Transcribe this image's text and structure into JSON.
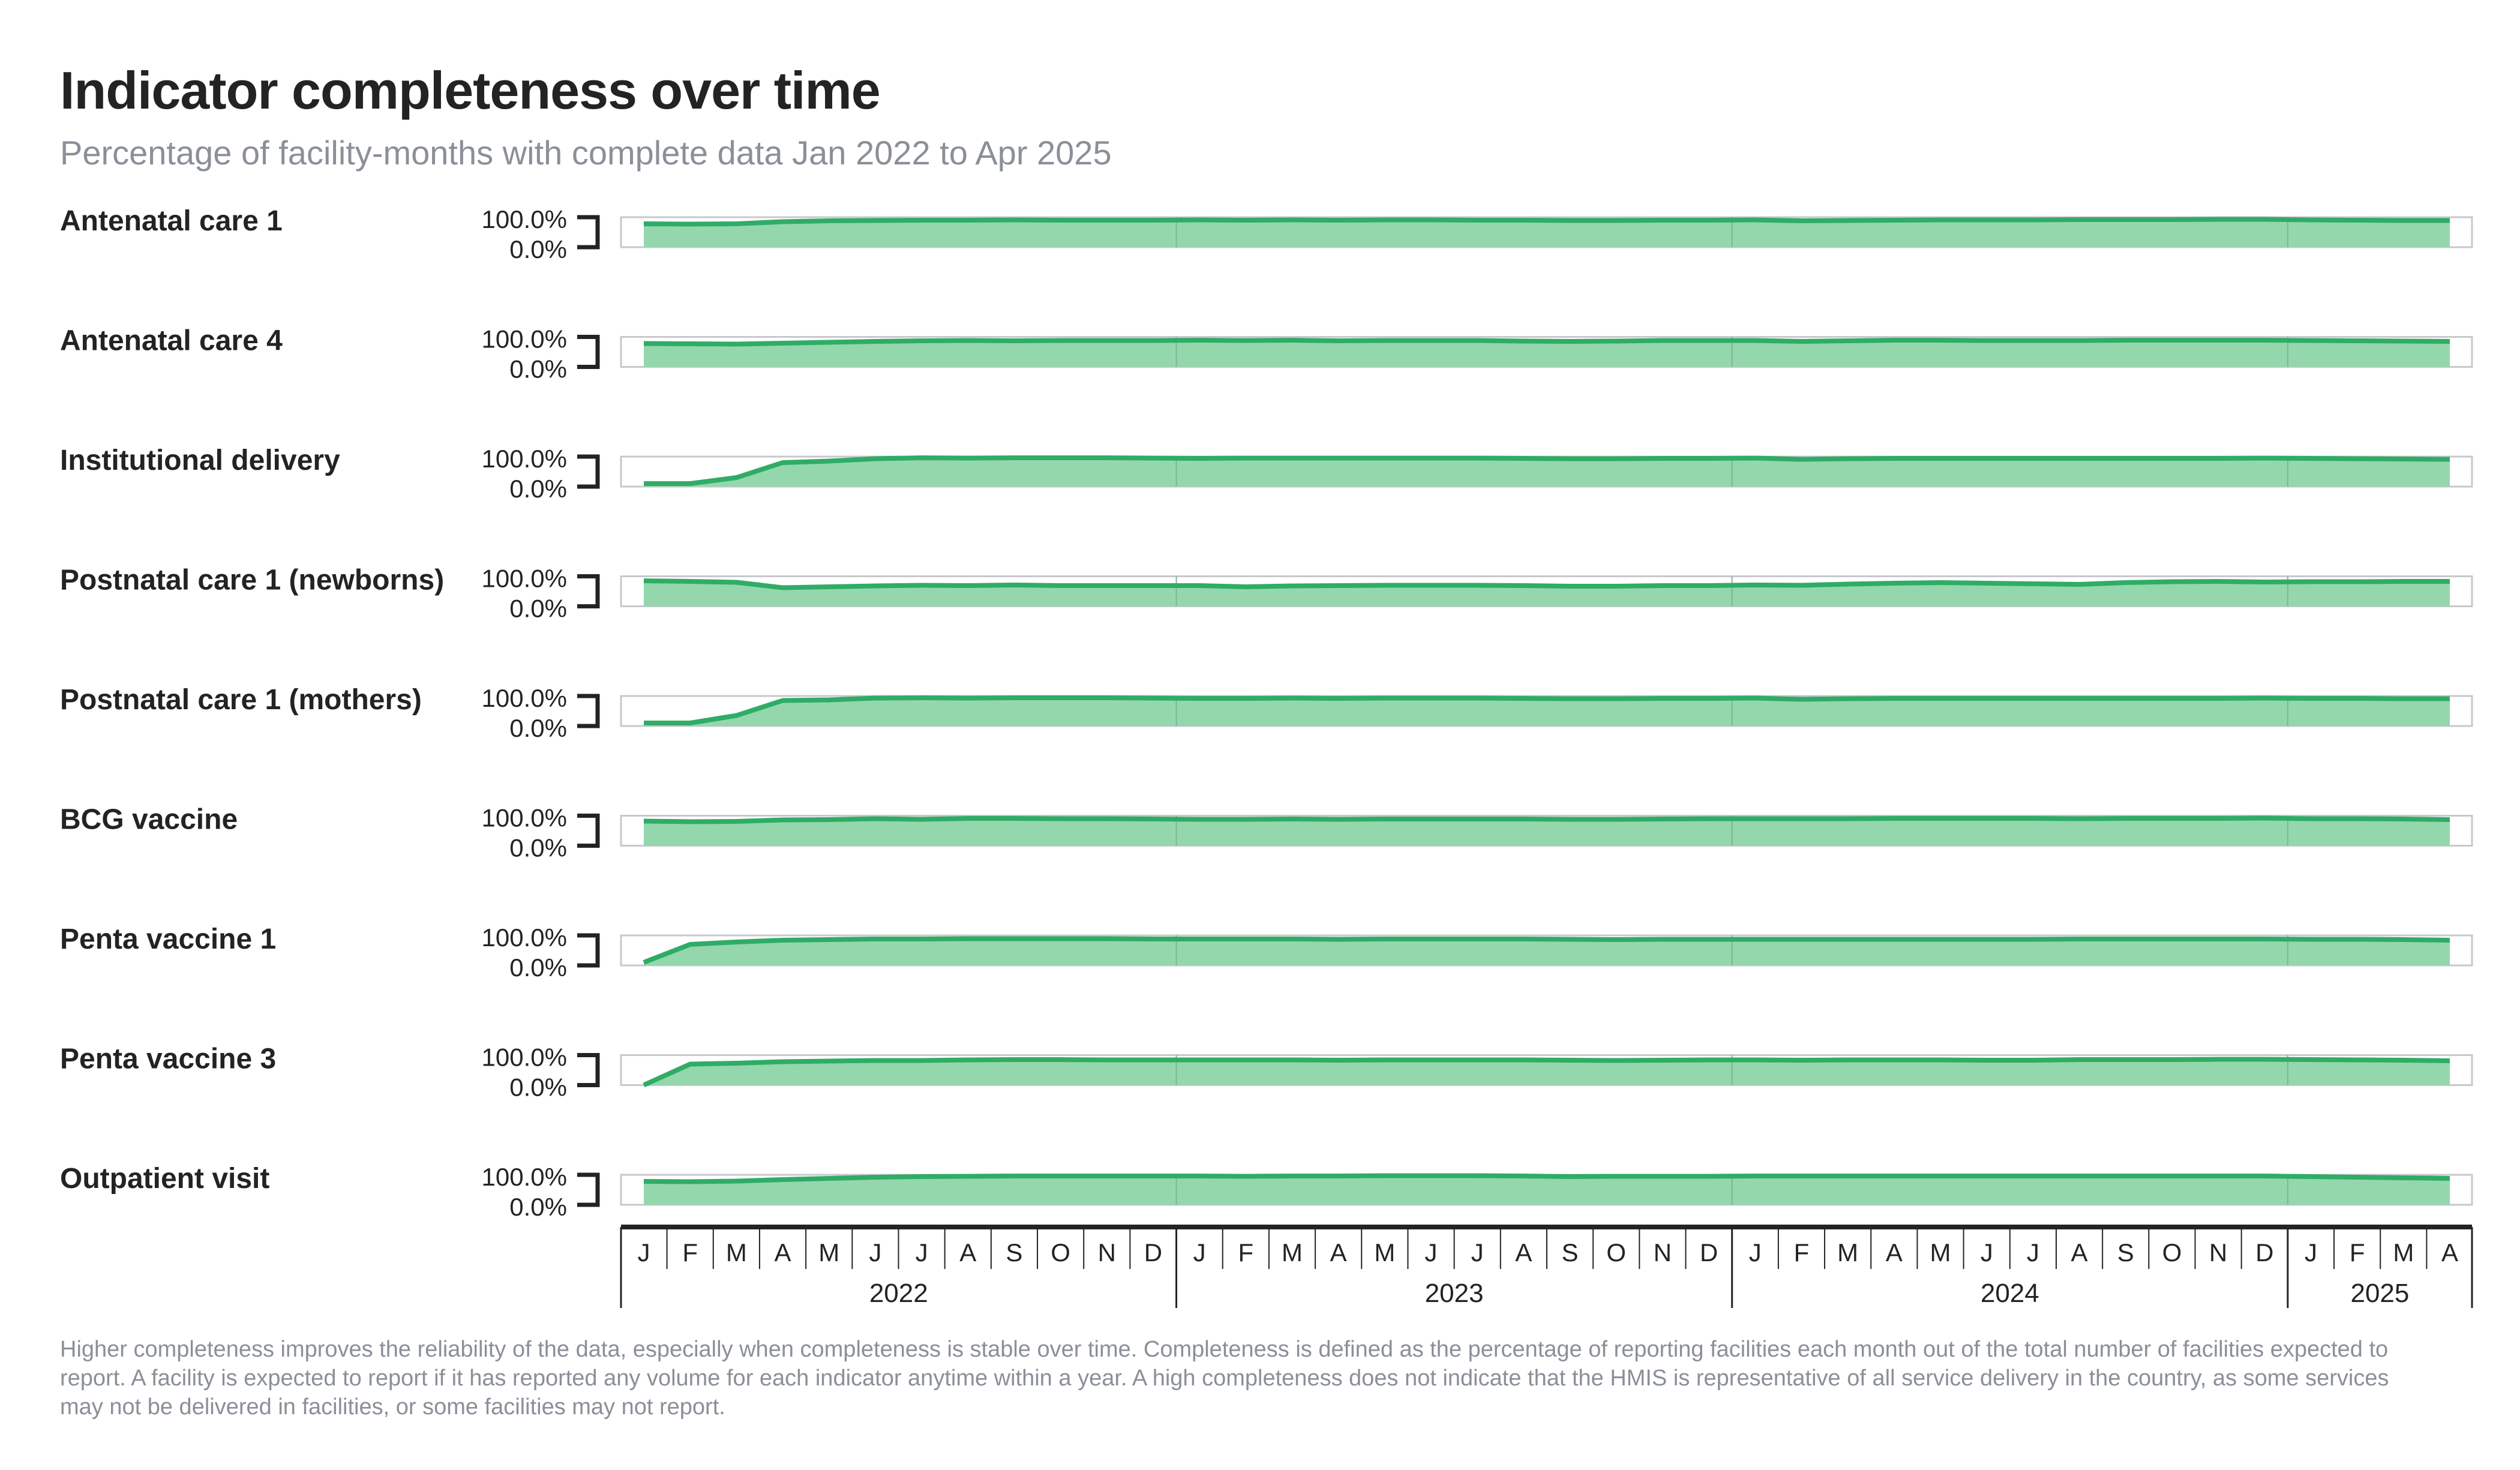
{
  "title": "Indicator completeness over time",
  "subtitle": "Percentage of facility-months with complete data Jan 2022 to Apr 2025",
  "footnote": "Higher completeness improves the reliability of the data, especially when completeness is stable over time. Completeness is defined as the percentage of reporting facilities each month out of the total number of facilities expected to report. A facility is expected to report if it has reported any volume for each indicator anytime within a year. A high completeness does not indicate that the HMIS is representative of all service delivery in the country, as some services may not be delivered in facilities, or some facilities may not report.",
  "colors": {
    "line": "#2fac66",
    "fill": "#94d7ad",
    "frame": "#c8c8cc",
    "axis": "#232323"
  },
  "chart_data": {
    "type": "area",
    "x_start": "2022-01",
    "x_end": "2025-04",
    "month_labels": [
      "J",
      "F",
      "M",
      "A",
      "M",
      "J",
      "J",
      "A",
      "S",
      "O",
      "N",
      "D",
      "J",
      "F",
      "M",
      "A",
      "M",
      "J",
      "J",
      "A",
      "S",
      "O",
      "N",
      "D",
      "J",
      "F",
      "M",
      "A",
      "M",
      "J",
      "J",
      "A",
      "S",
      "O",
      "N",
      "D",
      "J",
      "F",
      "M",
      "A"
    ],
    "year_labels": [
      "2022",
      "2023",
      "2024",
      "2025"
    ],
    "ytick_labels": [
      "100.0%",
      "0.0%"
    ],
    "ylim": [
      0,
      100
    ],
    "grid": false,
    "series": [
      {
        "name": "Antenatal care 1",
        "values": [
          78,
          77,
          78,
          85,
          88,
          89,
          90,
          90,
          91,
          90,
          90,
          90,
          91,
          90,
          91,
          90,
          91,
          91,
          90,
          90,
          89,
          89,
          90,
          90,
          91,
          88,
          89,
          90,
          91,
          91,
          91,
          92,
          92,
          92,
          93,
          93,
          91,
          90,
          89,
          89
        ]
      },
      {
        "name": "Antenatal care 4",
        "values": [
          78,
          77,
          76,
          79,
          82,
          85,
          87,
          88,
          87,
          88,
          88,
          88,
          89,
          88,
          89,
          87,
          88,
          88,
          88,
          86,
          85,
          86,
          88,
          88,
          88,
          85,
          87,
          89,
          89,
          88,
          88,
          88,
          89,
          89,
          89,
          89,
          88,
          87,
          86,
          85
        ]
      },
      {
        "name": "Institutional delivery",
        "values": [
          10,
          10,
          30,
          80,
          85,
          93,
          96,
          95,
          96,
          96,
          96,
          95,
          94,
          95,
          95,
          95,
          95,
          95,
          95,
          94,
          93,
          93,
          94,
          94,
          95,
          91,
          93,
          94,
          94,
          94,
          94,
          94,
          94,
          94,
          94,
          95,
          94,
          93,
          92,
          91
        ]
      },
      {
        "name": "Postnatal care 1 (newborns)",
        "values": [
          85,
          83,
          80,
          62,
          65,
          68,
          70,
          69,
          71,
          69,
          69,
          69,
          69,
          65,
          68,
          69,
          70,
          70,
          70,
          69,
          67,
          67,
          69,
          69,
          71,
          70,
          74,
          77,
          79,
          77,
          75,
          73,
          79,
          82,
          83,
          81,
          82,
          82,
          83,
          83
        ]
      },
      {
        "name": "Postnatal care 1 (mothers)",
        "values": [
          10,
          10,
          35,
          85,
          87,
          93,
          94,
          93,
          94,
          94,
          94,
          93,
          92,
          92,
          93,
          92,
          93,
          93,
          93,
          92,
          91,
          91,
          92,
          92,
          93,
          89,
          91,
          92,
          92,
          92,
          92,
          92,
          92,
          92,
          92,
          93,
          92,
          92,
          91,
          91
        ]
      },
      {
        "name": "BCG vaccine",
        "values": [
          82,
          80,
          81,
          86,
          87,
          90,
          88,
          91,
          91,
          90,
          90,
          89,
          88,
          88,
          89,
          88,
          89,
          89,
          89,
          89,
          88,
          88,
          89,
          90,
          90,
          90,
          90,
          91,
          91,
          91,
          91,
          90,
          91,
          91,
          91,
          92,
          90,
          90,
          89,
          87
        ]
      },
      {
        "name": "Penta vaccine 1",
        "values": [
          10,
          70,
          78,
          84,
          86,
          88,
          88,
          89,
          89,
          89,
          89,
          88,
          88,
          88,
          88,
          87,
          88,
          88,
          88,
          88,
          87,
          86,
          87,
          87,
          87,
          87,
          87,
          87,
          87,
          87,
          87,
          88,
          88,
          88,
          88,
          88,
          87,
          87,
          86,
          84
        ]
      },
      {
        "name": "Penta vaccine 3",
        "values": [
          0,
          70,
          73,
          78,
          80,
          82,
          82,
          84,
          85,
          85,
          84,
          84,
          84,
          84,
          84,
          83,
          84,
          84,
          84,
          84,
          83,
          82,
          83,
          84,
          84,
          83,
          84,
          84,
          84,
          83,
          83,
          85,
          85,
          85,
          86,
          86,
          85,
          84,
          83,
          81
        ]
      },
      {
        "name": "Outpatient visit",
        "values": [
          78,
          77,
          79,
          84,
          88,
          92,
          94,
          95,
          96,
          96,
          96,
          96,
          96,
          95,
          96,
          96,
          97,
          97,
          97,
          96,
          94,
          95,
          95,
          95,
          96,
          96,
          96,
          96,
          96,
          96,
          96,
          96,
          96,
          96,
          96,
          96,
          94,
          92,
          90,
          88
        ]
      }
    ]
  }
}
